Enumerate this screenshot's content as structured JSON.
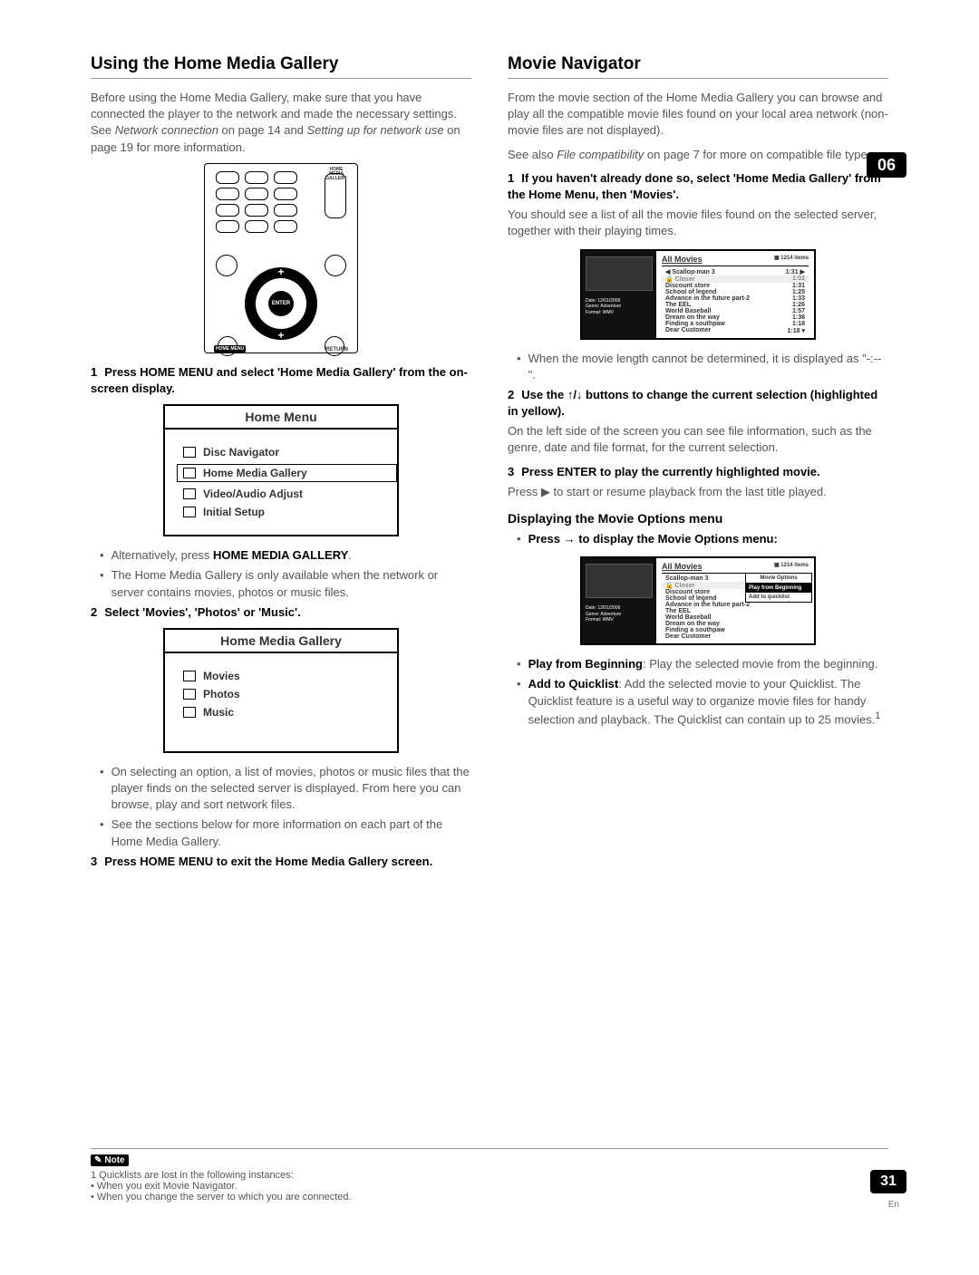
{
  "chapter": "06",
  "page_number": "31",
  "page_lang": "En",
  "left": {
    "heading": "Using the Home Media Gallery",
    "intro_a": "Before using the Home Media Gallery, make sure that you have connected the player to the network and made the necessary settings. See ",
    "intro_i1": "Network connection",
    "intro_b": " on page 14 and ",
    "intro_i2": "Setting up for network use",
    "intro_c": " on page 19 for more information.",
    "remote": {
      "hmg_label": "HOME MEDIA GALLERY",
      "enter": "ENTER",
      "home_menu": "HOME MENU",
      "return": "RETURN"
    },
    "step1_num": "1",
    "step1": "Press HOME MENU and select 'Home Media Gallery' from the on-screen display.",
    "home_menu": {
      "title": "Home Menu",
      "items": [
        "Disc Navigator",
        "Home Media Gallery",
        "Video/Audio Adjust",
        "Initial Setup"
      ]
    },
    "bullet1_a": "Alternatively, press ",
    "bullet1_b": "HOME MEDIA GALLERY",
    "bullet1_c": ".",
    "bullet2": "The Home Media Gallery is only available when the network or server contains movies, photos or music files.",
    "step2_num": "2",
    "step2": "Select 'Movies', 'Photos' or 'Music'.",
    "hmg_menu": {
      "title": "Home Media Gallery",
      "items": [
        "Movies",
        "Photos",
        "Music"
      ]
    },
    "bullet3": "On selecting an option, a list of movies, photos or music files that the player finds on the selected server is displayed. From here you can browse, play and sort network files.",
    "bullet4": "See the sections below for more information on each part of the Home Media Gallery.",
    "step3_num": "3",
    "step3": "Press HOME MENU to exit the Home Media Gallery screen."
  },
  "right": {
    "heading": "Movie Navigator",
    "intro": "From the movie section of the Home Media Gallery you can browse and play all the compatible movie files found on your local area network (non-movie files are not displayed).",
    "see_a": "See also ",
    "see_i": "File compatibility",
    "see_b": " on page 7 for more on compatible file types.",
    "step1_num": "1",
    "step1": "If you haven't already done so, select 'Home Media Gallery' from the Home Menu, then 'Movies'.",
    "step1_desc": "You should see a list of all the movie files found on the selected server, together with their playing times.",
    "shot1": {
      "header": "All Movies",
      "count": "1214 items",
      "meta": [
        "Date: 12/01/2006",
        "Genre: Adventure",
        "Format: WMV"
      ],
      "rows": [
        {
          "t": "Scallop-man 3",
          "d": "1:31",
          "arrow": "▶",
          "pre": "◀"
        },
        {
          "t": "Closer",
          "d": "1:02",
          "hl": true,
          "lock": "🔒"
        },
        {
          "t": "Discount store",
          "d": "1:31"
        },
        {
          "t": "School of legend",
          "d": "1:25"
        },
        {
          "t": "Advance in the future part-2",
          "d": "1:33"
        },
        {
          "t": "The EEL",
          "d": "1:26"
        },
        {
          "t": "World Baseball",
          "d": "1:57"
        },
        {
          "t": "Dream on the way",
          "d": "1:36"
        },
        {
          "t": "Finding a southpaw",
          "d": "1:18"
        },
        {
          "t": "Dear Customer",
          "d": "1:18",
          "arrow": "▾"
        }
      ]
    },
    "bullet1": "When the movie length cannot be determined, it is displayed as \"-:--\".",
    "step2_num": "2",
    "step2_a": "Use the ",
    "step2_b": " buttons to change the current selection (highlighted in yellow).",
    "step2_arrows": "↑/↓",
    "step2_desc": "On the left side of the screen you can see file information, such as the genre, date and file format, for the current selection.",
    "step3_num": "3",
    "step3": "Press ENTER to play the currently highlighted movie.",
    "step3_desc_a": "Press ",
    "step3_desc_sym": "▶",
    "step3_desc_b": " to start or resume playback from the last title played.",
    "sub_heading": "Displaying the Movie Options menu",
    "bullet_opt_a": "Press ",
    "bullet_opt_sym": "→",
    "bullet_opt_b": " to display the Movie Options menu:",
    "shot2": {
      "header": "All Movies",
      "count": "1214 items",
      "meta": [
        "Date: 12/01/2006",
        "Genre: Adventure",
        "Format: WMV"
      ],
      "rows": [
        {
          "t": "Scallop-man 3"
        },
        {
          "t": "Closer",
          "hl": true,
          "lock": "🔒"
        },
        {
          "t": "Discount store"
        },
        {
          "t": "School of legend"
        },
        {
          "t": "Advance in the future part-2"
        },
        {
          "t": "The EEL"
        },
        {
          "t": "World Baseball"
        },
        {
          "t": "Dream on the way"
        },
        {
          "t": "Finding a southpaw"
        },
        {
          "t": "Dear Customer"
        }
      ],
      "popup": {
        "title": "Movie Options",
        "items": [
          "Play from Beginning",
          "Add to quicklist"
        ]
      }
    },
    "opt1_b": "Play from Beginning",
    "opt1_t": ": Play the selected movie from the beginning.",
    "opt2_b": "Add to Quicklist",
    "opt2_t": ": Add the selected movie to your Quicklist. The Quicklist feature is a useful way to organize movie files for handy selection and playback. The Quicklist can contain up to 25 movies.",
    "opt2_sup": "1"
  },
  "footer": {
    "note_label": "Note",
    "line1": "1 Quicklists are lost in the following instances:",
    "line2": "When you exit Movie Navigator.",
    "line3": "When you change the server to which you are connected."
  }
}
